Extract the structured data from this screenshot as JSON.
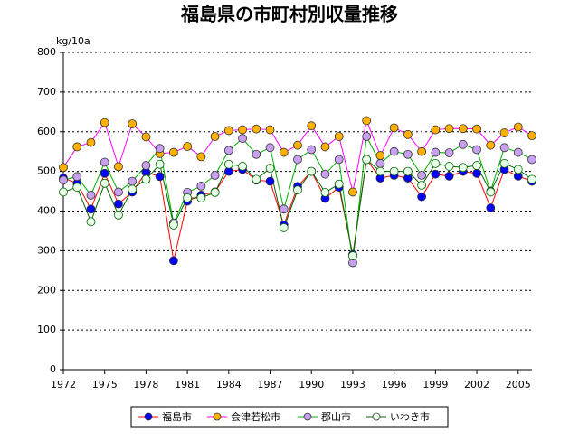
{
  "chart_data": {
    "type": "line",
    "title": "福島県の市町村別収量推移",
    "y_label": "kg/10a",
    "x": [
      1972,
      1973,
      1974,
      1975,
      1976,
      1977,
      1978,
      1979,
      1980,
      1981,
      1982,
      1983,
      1984,
      1985,
      1986,
      1987,
      1988,
      1989,
      1990,
      1991,
      1992,
      1993,
      1994,
      1995,
      1996,
      1997,
      1998,
      1999,
      2000,
      2001,
      2002,
      2003,
      2004,
      2005,
      2006
    ],
    "xlim": [
      1972,
      2006
    ],
    "xticks": [
      1972,
      1975,
      1978,
      1981,
      1984,
      1987,
      1990,
      1993,
      1996,
      1999,
      2002,
      2005
    ],
    "ylim": [
      0,
      800
    ],
    "yticks": [
      0,
      100,
      200,
      300,
      400,
      500,
      600,
      700,
      800
    ],
    "grid": true,
    "legend": "bottom",
    "series": [
      {
        "name": "福島市",
        "color": "#0000ff",
        "line_color": "#ff0000",
        "values": [
          483,
          470,
          405,
          495,
          418,
          448,
          498,
          487,
          275,
          425,
          440,
          448,
          500,
          505,
          478,
          475,
          365,
          462,
          500,
          432,
          460,
          290,
          530,
          483,
          490,
          483,
          436,
          493,
          488,
          500,
          495,
          408,
          505,
          488,
          475
        ]
      },
      {
        "name": "会津若松市",
        "color": "#ffb000",
        "line_color": "#ff00ff",
        "values": [
          510,
          562,
          573,
          623,
          512,
          620,
          587,
          545,
          548,
          563,
          537,
          588,
          603,
          605,
          607,
          605,
          548,
          566,
          615,
          562,
          588,
          448,
          628,
          540,
          610,
          593,
          550,
          605,
          608,
          608,
          607,
          566,
          597,
          612,
          590
        ]
      },
      {
        "name": "郡山市",
        "color": "#c8a0f0",
        "line_color": "#00b000",
        "values": [
          478,
          487,
          440,
          523,
          448,
          475,
          515,
          558,
          370,
          447,
          463,
          490,
          553,
          583,
          543,
          560,
          405,
          530,
          555,
          493,
          530,
          270,
          588,
          520,
          550,
          543,
          490,
          548,
          547,
          568,
          555,
          450,
          560,
          548,
          530
        ]
      },
      {
        "name": "いわき市",
        "color": "#e8ffe8",
        "line_color": "#006400",
        "values": [
          448,
          460,
          373,
          470,
          390,
          455,
          480,
          518,
          365,
          433,
          433,
          447,
          518,
          513,
          480,
          508,
          358,
          453,
          500,
          447,
          468,
          287,
          530,
          500,
          500,
          500,
          465,
          520,
          513,
          510,
          515,
          448,
          520,
          505,
          480
        ]
      }
    ]
  }
}
